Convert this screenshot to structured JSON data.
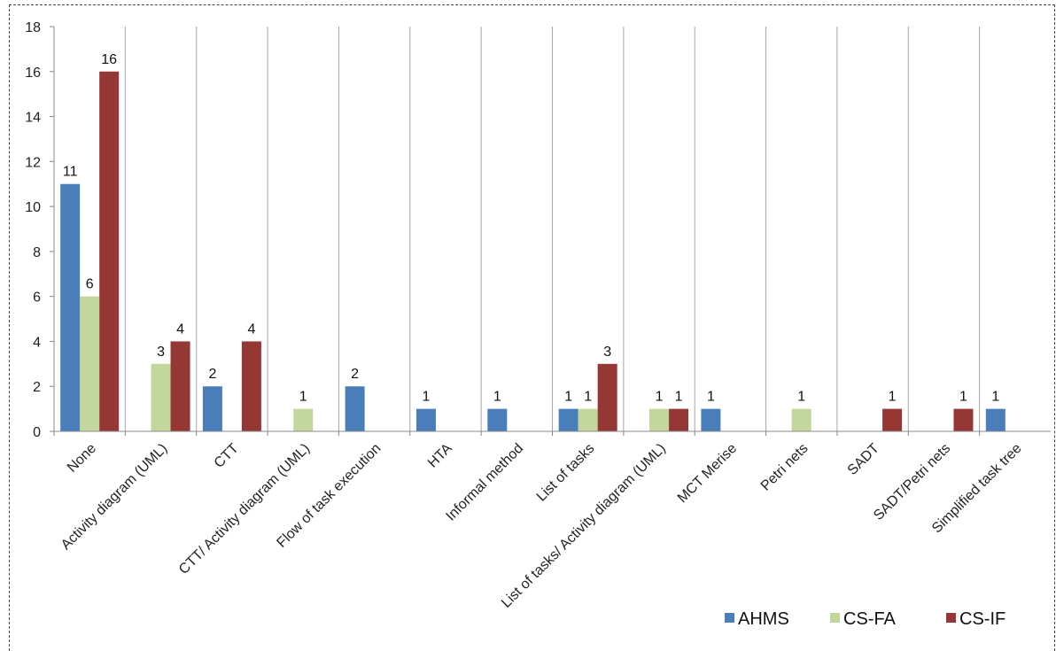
{
  "chart_data": {
    "type": "bar",
    "categories": [
      "None",
      "Activity diagram (UML)",
      "CTT",
      "CTT/ Activity diagram (UML)",
      "Flow of task execution",
      "HTA",
      "Informal method",
      "List of tasks",
      "List of tasks/ Activity diagram (UML)",
      "MCT Merise",
      "Petri nets",
      "SADT",
      "SADT/Petri nets",
      "Simplified task tree"
    ],
    "series": [
      {
        "name": "AHMS",
        "color": "#4a7ebb",
        "values": [
          11,
          0,
          2,
          0,
          2,
          1,
          1,
          1,
          0,
          1,
          0,
          0,
          0,
          1
        ]
      },
      {
        "name": "CS-FA",
        "color": "#c3d69b",
        "values": [
          6,
          3,
          0,
          1,
          0,
          0,
          0,
          1,
          1,
          0,
          1,
          0,
          0,
          0
        ]
      },
      {
        "name": "CS-IF",
        "color": "#953735",
        "values": [
          16,
          4,
          4,
          0,
          0,
          0,
          0,
          3,
          1,
          0,
          0,
          1,
          1,
          0
        ]
      }
    ],
    "yticks": [
      0,
      2,
      4,
      6,
      8,
      10,
      12,
      14,
      16,
      18
    ],
    "ylim": [
      0,
      18
    ],
    "legend_position": "bottom-right",
    "grid": "vertical category separators"
  }
}
